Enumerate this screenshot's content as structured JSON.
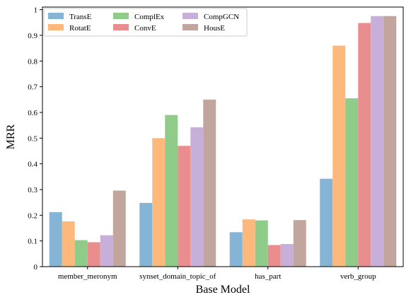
{
  "chart_data": {
    "type": "bar",
    "xlabel": "Base Model",
    "ylabel": "MRR",
    "ylim": [
      0,
      1.01
    ],
    "yticks": [
      0,
      0.1,
      0.2,
      0.3,
      0.4,
      0.5,
      0.6,
      0.7,
      0.8,
      0.9,
      1
    ],
    "ytick_labels": [
      "0",
      "0.1",
      "0.2",
      "0.3",
      "0.4",
      "0.5",
      "0.6",
      "0.7",
      "0.8",
      "0.9",
      "1"
    ],
    "grid": false,
    "legend_position": "top-left",
    "categories": [
      "member_meronym",
      "synset_domain_topic_of",
      "has_part",
      "verb_group"
    ],
    "series": [
      {
        "name": "TransE",
        "color": "#84b4d6",
        "values": [
          0.212,
          0.248,
          0.134,
          0.342
        ]
      },
      {
        "name": "RotatE",
        "color": "#fdb97c",
        "values": [
          0.176,
          0.5,
          0.184,
          0.86
        ]
      },
      {
        "name": "ComplEx",
        "color": "#8fcc8a",
        "values": [
          0.103,
          0.59,
          0.18,
          0.655
        ]
      },
      {
        "name": "ConvE",
        "color": "#e98d8e",
        "values": [
          0.095,
          0.47,
          0.084,
          0.948
        ]
      },
      {
        "name": "CompGCN",
        "color": "#c8afd9",
        "values": [
          0.122,
          0.542,
          0.088,
          0.975
        ]
      },
      {
        "name": "HousE",
        "color": "#c2a69e",
        "values": [
          0.296,
          0.65,
          0.181,
          0.975
        ]
      }
    ]
  }
}
